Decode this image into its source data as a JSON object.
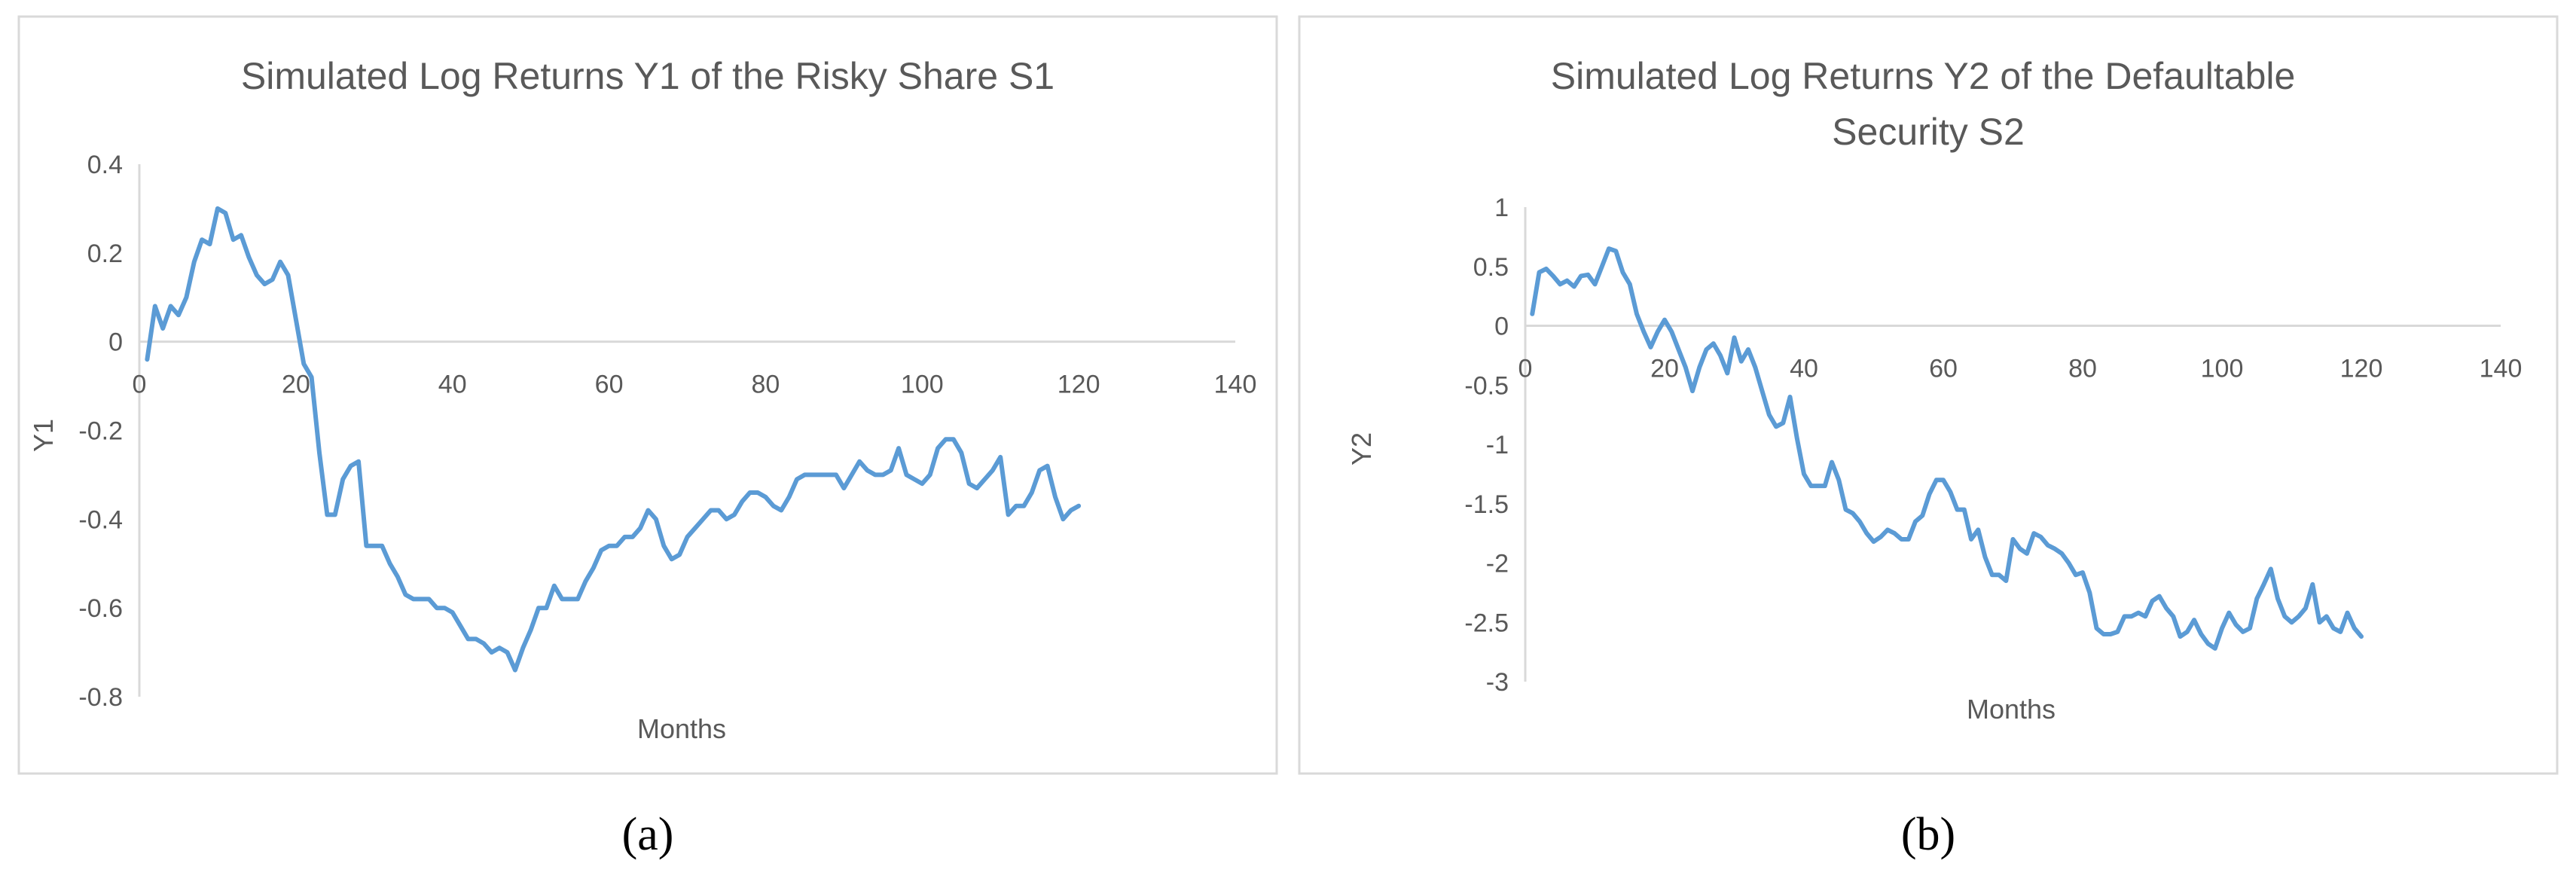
{
  "chart_data": [
    {
      "type": "line",
      "title": "Simulated Log Returns Y1 of the Risky Share S1",
      "subtitle": "",
      "xlabel": "Months",
      "ylabel": "Y1",
      "xlim": [
        0,
        140
      ],
      "ylim": [
        -0.8,
        0.4
      ],
      "xticks": [
        0,
        20,
        40,
        60,
        80,
        100,
        120,
        140
      ],
      "yticks": [
        0.4,
        0.2,
        0,
        -0.2,
        -0.4,
        -0.6,
        -0.8
      ],
      "grid": false,
      "legend": "none",
      "line_color": "#5b9bd5",
      "caption": "(a)",
      "x": [
        1,
        2,
        3,
        4,
        5,
        6,
        7,
        8,
        9,
        10,
        11,
        12,
        13,
        14,
        15,
        16,
        17,
        18,
        19,
        20,
        21,
        22,
        23,
        24,
        25,
        26,
        27,
        28,
        29,
        30,
        31,
        32,
        33,
        34,
        35,
        36,
        37,
        38,
        39,
        40,
        41,
        42,
        43,
        44,
        45,
        46,
        47,
        48,
        49,
        50,
        51,
        52,
        53,
        54,
        55,
        56,
        57,
        58,
        59,
        60,
        61,
        62,
        63,
        64,
        65,
        66,
        67,
        68,
        69,
        70,
        71,
        72,
        73,
        74,
        75,
        76,
        77,
        78,
        79,
        80,
        81,
        82,
        83,
        84,
        85,
        86,
        87,
        88,
        89,
        90,
        91,
        92,
        93,
        94,
        95,
        96,
        97,
        98,
        99,
        100,
        101,
        102,
        103,
        104,
        105,
        106,
        107,
        108,
        109,
        110,
        111,
        112,
        113,
        114,
        115,
        116,
        117,
        118,
        119,
        120
      ],
      "y": [
        -0.04,
        0.08,
        0.03,
        0.08,
        0.06,
        0.1,
        0.18,
        0.23,
        0.22,
        0.3,
        0.29,
        0.23,
        0.24,
        0.19,
        0.15,
        0.13,
        0.14,
        0.18,
        0.15,
        0.05,
        -0.05,
        -0.08,
        -0.25,
        -0.39,
        -0.39,
        -0.31,
        -0.28,
        -0.27,
        -0.46,
        -0.46,
        -0.46,
        -0.5,
        -0.53,
        -0.57,
        -0.58,
        -0.58,
        -0.58,
        -0.6,
        -0.6,
        -0.61,
        -0.64,
        -0.67,
        -0.67,
        -0.68,
        -0.7,
        -0.69,
        -0.7,
        -0.74,
        -0.69,
        -0.65,
        -0.6,
        -0.6,
        -0.55,
        -0.58,
        -0.58,
        -0.58,
        -0.54,
        -0.51,
        -0.47,
        -0.46,
        -0.46,
        -0.44,
        -0.44,
        -0.42,
        -0.38,
        -0.4,
        -0.46,
        -0.49,
        -0.48,
        -0.44,
        -0.42,
        -0.4,
        -0.38,
        -0.38,
        -0.4,
        -0.39,
        -0.36,
        -0.34,
        -0.34,
        -0.35,
        -0.37,
        -0.38,
        -0.35,
        -0.31,
        -0.3,
        -0.3,
        -0.3,
        -0.3,
        -0.3,
        -0.33,
        -0.3,
        -0.27,
        -0.29,
        -0.3,
        -0.3,
        -0.29,
        -0.24,
        -0.3,
        -0.31,
        -0.32,
        -0.3,
        -0.24,
        -0.22,
        -0.22,
        -0.25,
        -0.32,
        -0.33,
        -0.31,
        -0.29,
        -0.26,
        -0.39,
        -0.37,
        -0.37,
        -0.34,
        -0.29,
        -0.28,
        -0.35,
        -0.4,
        -0.38,
        -0.37
      ]
    },
    {
      "type": "line",
      "title": "Simulated Log Returns Y2 of the Defaultable Security S2",
      "title_lines": [
        "Simulated Log Returns Y2 of the Defaultable",
        "Security S2"
      ],
      "subtitle": "",
      "xlabel": "Months",
      "ylabel": "Y2",
      "xlim": [
        0,
        140
      ],
      "ylim": [
        -3,
        1
      ],
      "xticks": [
        0,
        20,
        40,
        60,
        80,
        100,
        120,
        140
      ],
      "yticks": [
        1,
        0.5,
        0,
        -0.5,
        -1,
        -1.5,
        -2,
        -2.5,
        -3
      ],
      "grid": false,
      "legend": "none",
      "line_color": "#5b9bd5",
      "caption": "(b)",
      "x": [
        1,
        2,
        3,
        4,
        5,
        6,
        7,
        8,
        9,
        10,
        11,
        12,
        13,
        14,
        15,
        16,
        17,
        18,
        19,
        20,
        21,
        22,
        23,
        24,
        25,
        26,
        27,
        28,
        29,
        30,
        31,
        32,
        33,
        34,
        35,
        36,
        37,
        38,
        39,
        40,
        41,
        42,
        43,
        44,
        45,
        46,
        47,
        48,
        49,
        50,
        51,
        52,
        53,
        54,
        55,
        56,
        57,
        58,
        59,
        60,
        61,
        62,
        63,
        64,
        65,
        66,
        67,
        68,
        69,
        70,
        71,
        72,
        73,
        74,
        75,
        76,
        77,
        78,
        79,
        80,
        81,
        82,
        83,
        84,
        85,
        86,
        87,
        88,
        89,
        90,
        91,
        92,
        93,
        94,
        95,
        96,
        97,
        98,
        99,
        100,
        101,
        102,
        103,
        104,
        105,
        106,
        107,
        108,
        109,
        110,
        111,
        112,
        113,
        114,
        115,
        116,
        117,
        118,
        119,
        120
      ],
      "y": [
        0.1,
        0.45,
        0.48,
        0.42,
        0.35,
        0.38,
        0.33,
        0.42,
        0.43,
        0.35,
        0.5,
        0.65,
        0.63,
        0.45,
        0.35,
        0.1,
        -0.05,
        -0.18,
        -0.05,
        0.05,
        -0.05,
        -0.2,
        -0.35,
        -0.55,
        -0.35,
        -0.2,
        -0.15,
        -0.25,
        -0.4,
        -0.1,
        -0.3,
        -0.2,
        -0.35,
        -0.55,
        -0.75,
        -0.85,
        -0.82,
        -0.6,
        -0.95,
        -1.25,
        -1.35,
        -1.35,
        -1.35,
        -1.15,
        -1.3,
        -1.55,
        -1.58,
        -1.65,
        -1.75,
        -1.82,
        -1.78,
        -1.72,
        -1.75,
        -1.8,
        -1.8,
        -1.65,
        -1.6,
        -1.42,
        -1.3,
        -1.3,
        -1.4,
        -1.55,
        -1.55,
        -1.8,
        -1.72,
        -1.95,
        -2.1,
        -2.1,
        -2.15,
        -1.8,
        -1.88,
        -1.92,
        -1.75,
        -1.78,
        -1.85,
        -1.88,
        -1.92,
        -2.0,
        -2.1,
        -2.08,
        -2.25,
        -2.55,
        -2.6,
        -2.6,
        -2.58,
        -2.45,
        -2.45,
        -2.42,
        -2.45,
        -2.32,
        -2.28,
        -2.38,
        -2.45,
        -2.62,
        -2.58,
        -2.48,
        -2.6,
        -2.68,
        -2.72,
        -2.55,
        -2.42,
        -2.52,
        -2.58,
        -2.55,
        -2.3,
        -2.18,
        -2.05,
        -2.3,
        -2.45,
        -2.5,
        -2.45,
        -2.38,
        -2.18,
        -2.5,
        -2.45,
        -2.55,
        -2.58,
        -2.42,
        -2.55,
        -2.62
      ]
    }
  ]
}
